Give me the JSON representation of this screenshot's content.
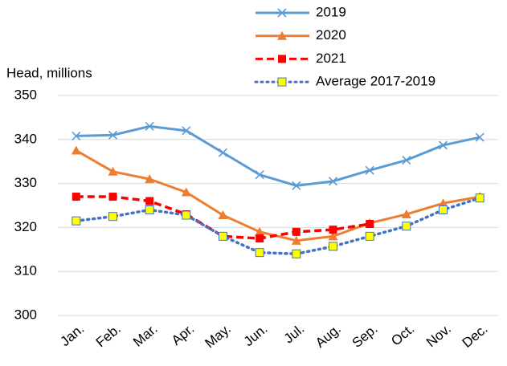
{
  "chart_data": {
    "type": "line",
    "y_label": "Head, millions",
    "categories": [
      "Jan.",
      "Feb.",
      "Mar.",
      "Apr.",
      "May.",
      "Jun.",
      "Jul.",
      "Aug.",
      "Sep.",
      "Oct.",
      "Nov.",
      "Dec."
    ],
    "ylim": [
      300,
      350
    ],
    "yticks": [
      300,
      310,
      320,
      330,
      340,
      350
    ],
    "grid": true,
    "legend": "top-right",
    "series": [
      {
        "name": "2019",
        "color": "#5b9bd5",
        "line_style": "solid",
        "marker": "x",
        "values": [
          340.8,
          341,
          343,
          342,
          337,
          332,
          329.5,
          330.5,
          333,
          335.3,
          338.7,
          340.5
        ]
      },
      {
        "name": "2020",
        "color": "#ed7d31",
        "line_style": "solid",
        "marker": "triangle",
        "values": [
          337.5,
          332.7,
          331,
          328,
          322.8,
          319,
          317,
          318,
          321,
          323,
          325.5,
          327
        ]
      },
      {
        "name": "2021",
        "color": "#ff0000",
        "line_style": "dashed",
        "marker": "square",
        "values": [
          327,
          327,
          326,
          323,
          318,
          317.5,
          319,
          319.5,
          320.8,
          null,
          null,
          null
        ]
      },
      {
        "name": "Average 2017-2019",
        "color": "#4472c4",
        "line_style": "dotted",
        "marker": "square-yellow",
        "values": [
          321.5,
          322.5,
          324,
          322.8,
          318,
          314.3,
          314,
          315.7,
          318,
          320.3,
          324,
          326.7
        ]
      }
    ]
  }
}
